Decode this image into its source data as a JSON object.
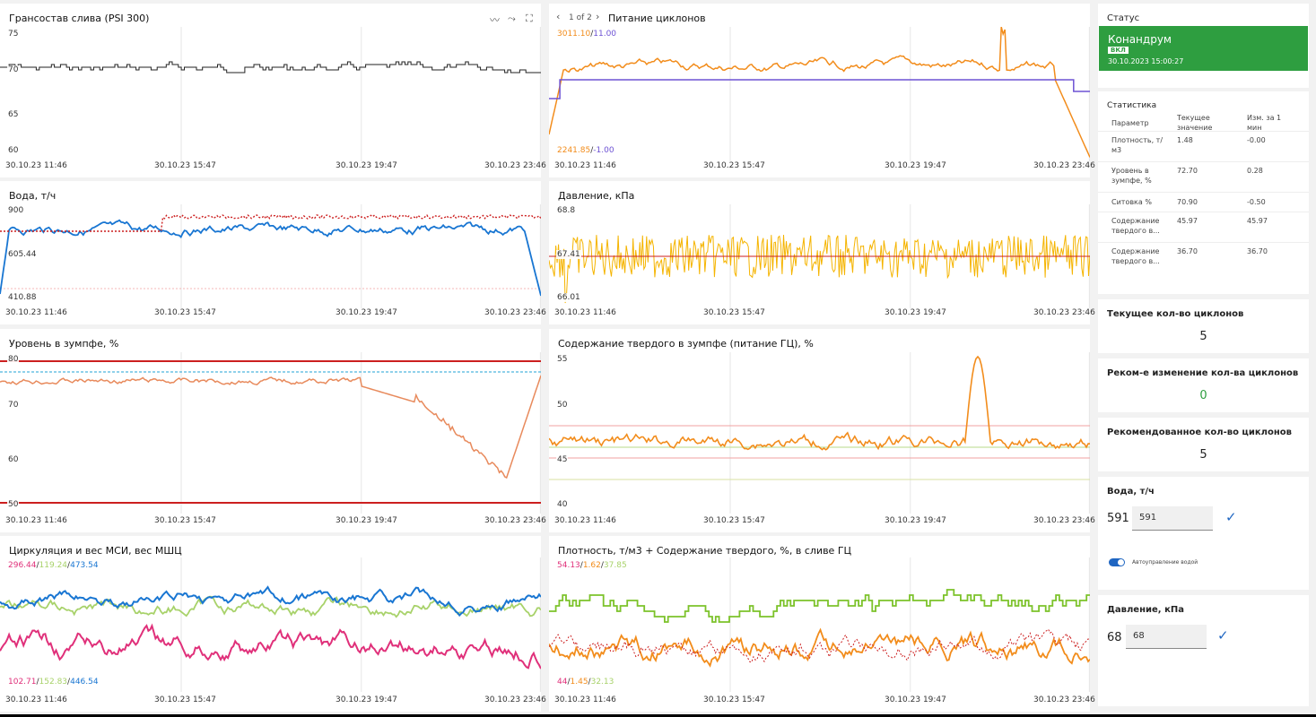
{
  "x_ticks": [
    "30.10.23 11:46",
    "30.10.23 15:47",
    "30.10.23 19:47",
    "30.10.23 23:46"
  ],
  "panels": {
    "p1": {
      "title": "Грансостав слива (PSI 300)",
      "y_ticks": [
        "75",
        "70",
        "65",
        "60"
      ]
    },
    "p2": {
      "title": "Питание циклонов",
      "pager": "1 of 2",
      "top_a": "3011.10",
      "top_b": "11.00",
      "bot_a": "2241.85",
      "bot_b": "-1.00"
    },
    "p3": {
      "title": "Вода, т/ч",
      "y_ticks": [
        "900",
        "605.44",
        "410.88"
      ]
    },
    "p4": {
      "title": "Давление, кПа",
      "y_ticks": [
        "68.8",
        "67.41",
        "66.01"
      ]
    },
    "p5": {
      "title": "Уровень в зумпфе, %",
      "y_ticks": [
        "80",
        "70",
        "60",
        "50"
      ]
    },
    "p6": {
      "title": "Содержание твердого в зумпфе (питание ГЦ), %",
      "y_ticks": [
        "55",
        "50",
        "45",
        "40"
      ]
    },
    "p7": {
      "title": "Циркуляция и вес МСИ, вес МШЦ",
      "top_a": "296.44",
      "top_b": "119.24",
      "top_c": "473.54",
      "bot_a": "102.71",
      "bot_b": "152.83",
      "bot_c": "446.54"
    },
    "p8": {
      "title": "Плотность, т/м3 + Содержание твердого, %, в сливе ГЦ",
      "top_a": "54.13",
      "top_b": "1.62",
      "top_c": "37.85",
      "bot_a": "44",
      "bot_b": "1.45",
      "bot_c": "32.13"
    }
  },
  "status": {
    "title": "Статус",
    "name": "Конандрум",
    "badge": "ВКЛ",
    "time": "30.10.2023 15:00:27"
  },
  "stats": {
    "title": "Статистика",
    "headers": [
      "Параметр",
      "Текущее значение",
      "Изм. за 1 мин"
    ],
    "rows": [
      {
        "param": "Плотность, т/м3",
        "value": "1.48",
        "change": "-0.00"
      },
      {
        "param": "Уровень в зумпфе, %",
        "value": "72.70",
        "change": "0.28"
      },
      {
        "param": "Ситовка %",
        "value": "70.90",
        "change": "-0.50"
      },
      {
        "param": "Содержание твердого в...",
        "value": "45.97",
        "change": "45.97"
      },
      {
        "param": "Содержание твердого в...",
        "value": "36.70",
        "change": "36.70"
      }
    ]
  },
  "cyclones_current": {
    "title": "Текущее кол-во циклонов",
    "value": "5"
  },
  "cyclones_change": {
    "title": "Реком-е изменение кол-ва циклонов",
    "value": "0"
  },
  "cyclones_recommended": {
    "title": "Рекомендованное кол-во циклонов",
    "value": "5"
  },
  "water": {
    "title": "Вода, т/ч",
    "current": "591",
    "input": "591",
    "toggle_label": "Автоуправление водой"
  },
  "pressure": {
    "title": "Давление, кПа",
    "current": "68",
    "input": "68"
  },
  "colors": {
    "status_green": "#2e9e40",
    "orange": "#f28c1b",
    "purple": "#6d52d4",
    "blue": "#1976d2",
    "red": "#cc1f1f",
    "gold": "#f5b400",
    "salmon": "#e88a5c",
    "pink": "#e0307a",
    "lime": "#a8d26a",
    "green": "#7cc22a",
    "check_blue": "#1f66c2"
  }
}
